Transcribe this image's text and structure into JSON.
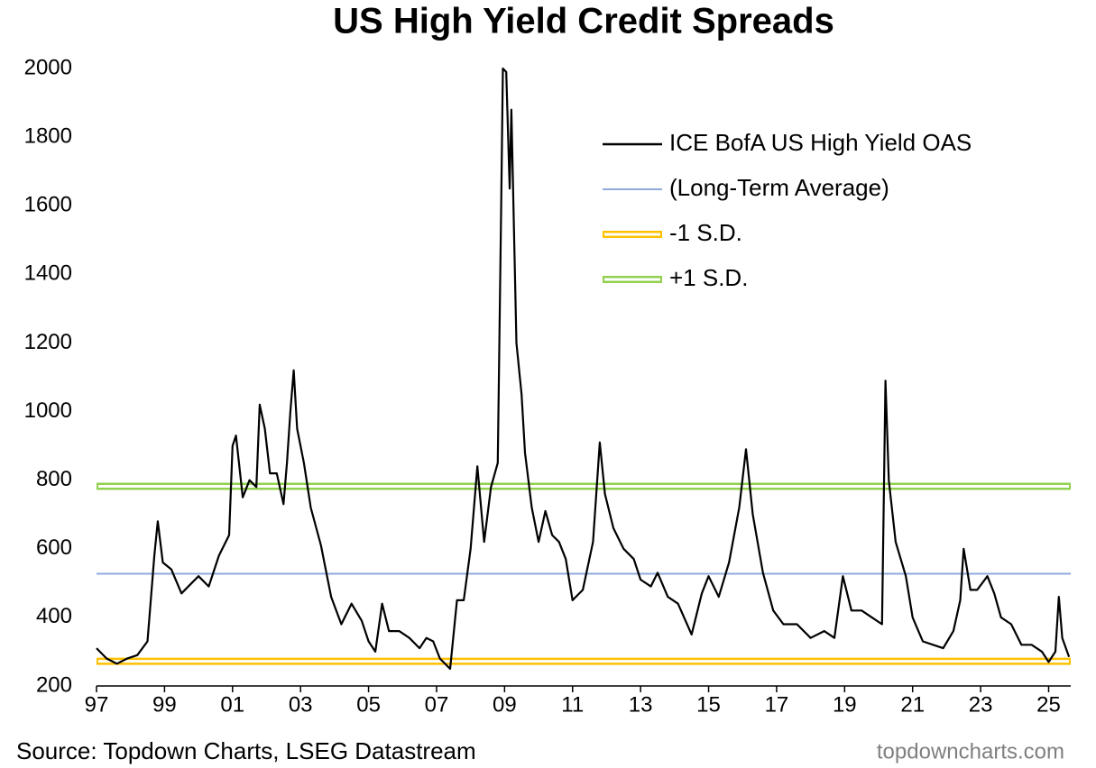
{
  "chart_data": {
    "type": "line",
    "title": "US High Yield Credit Spreads",
    "source": "Source: Topdown Charts, LSEG Datastream",
    "watermark": "topdowncharts.com",
    "xlim": [
      1997,
      2025.65
    ],
    "xticks": [
      {
        "value": 1997,
        "label": "97"
      },
      {
        "value": 1999,
        "label": "99"
      },
      {
        "value": 2001,
        "label": "01"
      },
      {
        "value": 2003,
        "label": "03"
      },
      {
        "value": 2005,
        "label": "05"
      },
      {
        "value": 2007,
        "label": "07"
      },
      {
        "value": 2009,
        "label": "09"
      },
      {
        "value": 2011,
        "label": "11"
      },
      {
        "value": 2013,
        "label": "13"
      },
      {
        "value": 2015,
        "label": "15"
      },
      {
        "value": 2017,
        "label": "17"
      },
      {
        "value": 2019,
        "label": "19"
      },
      {
        "value": 2021,
        "label": "21"
      },
      {
        "value": 2023,
        "label": "23"
      },
      {
        "value": 2025,
        "label": "25"
      }
    ],
    "ylim": [
      200,
      2000
    ],
    "yticks": [
      200,
      400,
      600,
      800,
      1000,
      1200,
      1400,
      1600,
      1800,
      2000
    ],
    "grid": false,
    "legend": "top-right",
    "series": [
      {
        "name": "ICE BofA US High Yield OAS",
        "color": "#000000",
        "x": [
          1997.0,
          1997.3,
          1997.6,
          1997.9,
          1998.2,
          1998.5,
          1998.7,
          1998.8,
          1998.95,
          1999.2,
          1999.5,
          1999.8,
          2000.0,
          2000.3,
          2000.6,
          2000.9,
          2001.0,
          2001.1,
          2001.3,
          2001.5,
          2001.7,
          2001.8,
          2001.95,
          2002.1,
          2002.3,
          2002.5,
          2002.6,
          2002.7,
          2002.8,
          2002.9,
          2003.1,
          2003.3,
          2003.6,
          2003.9,
          2004.2,
          2004.5,
          2004.8,
          2005.0,
          2005.2,
          2005.4,
          2005.6,
          2005.9,
          2006.2,
          2006.5,
          2006.7,
          2006.9,
          2007.1,
          2007.4,
          2007.6,
          2007.8,
          2008.0,
          2008.2,
          2008.4,
          2008.6,
          2008.8,
          2008.9,
          2008.95,
          2009.05,
          2009.15,
          2009.2,
          2009.35,
          2009.5,
          2009.6,
          2009.8,
          2010.0,
          2010.2,
          2010.4,
          2010.6,
          2010.8,
          2011.0,
          2011.3,
          2011.6,
          2011.8,
          2011.95,
          2012.2,
          2012.5,
          2012.8,
          2013.0,
          2013.3,
          2013.5,
          2013.8,
          2014.1,
          2014.5,
          2014.8,
          2015.0,
          2015.3,
          2015.6,
          2015.9,
          2016.1,
          2016.3,
          2016.6,
          2016.9,
          2017.2,
          2017.6,
          2018.0,
          2018.4,
          2018.7,
          2018.95,
          2019.2,
          2019.5,
          2019.8,
          2020.1,
          2020.2,
          2020.3,
          2020.5,
          2020.8,
          2021.0,
          2021.3,
          2021.6,
          2021.9,
          2022.2,
          2022.4,
          2022.5,
          2022.7,
          2022.9,
          2023.2,
          2023.4,
          2023.6,
          2023.9,
          2024.2,
          2024.5,
          2024.8,
          2025.0,
          2025.2,
          2025.3,
          2025.4,
          2025.6
        ],
        "values": [
          310,
          280,
          265,
          280,
          290,
          330,
          580,
          680,
          560,
          540,
          470,
          500,
          520,
          490,
          580,
          640,
          900,
          930,
          750,
          800,
          780,
          1020,
          950,
          820,
          820,
          730,
          850,
          1000,
          1120,
          950,
          850,
          720,
          610,
          460,
          380,
          440,
          390,
          330,
          300,
          440,
          360,
          360,
          340,
          310,
          340,
          330,
          280,
          250,
          450,
          450,
          600,
          840,
          620,
          780,
          850,
          1600,
          2000,
          1990,
          1650,
          1880,
          1200,
          1050,
          880,
          720,
          620,
          710,
          640,
          620,
          570,
          450,
          480,
          620,
          910,
          760,
          660,
          600,
          570,
          510,
          490,
          530,
          460,
          440,
          350,
          470,
          520,
          460,
          560,
          720,
          890,
          700,
          530,
          420,
          380,
          380,
          340,
          360,
          340,
          520,
          420,
          420,
          400,
          380,
          1090,
          800,
          620,
          520,
          400,
          330,
          320,
          310,
          360,
          450,
          600,
          480,
          480,
          520,
          470,
          400,
          380,
          320,
          320,
          300,
          270,
          300,
          460,
          340,
          285
        ]
      }
    ],
    "reference_lines": [
      {
        "name": "(Long-Term Average)",
        "color": "#8faadc",
        "value": 527
      },
      {
        "name": "-1 S.D.",
        "color": "#ffc000",
        "value": 272
      },
      {
        "name": "+1 S.D.",
        "color": "#92d050",
        "value": 782
      }
    ]
  }
}
